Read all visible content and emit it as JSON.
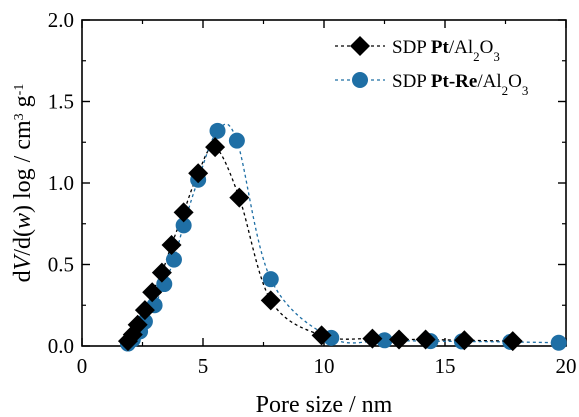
{
  "chart_data": {
    "type": "scatter",
    "xlabel": "Pore size / nm",
    "ylabel": "dV/d(w) log / cm3 g-1",
    "xlim": [
      0,
      20
    ],
    "ylim": [
      0,
      2.0
    ],
    "x_ticks": [
      0,
      5,
      10,
      15,
      20
    ],
    "y_ticks": [
      0.0,
      0.5,
      1.0,
      1.5,
      2.0
    ],
    "x_tick_labels": [
      "0",
      "5",
      "10",
      "15",
      "20"
    ],
    "y_tick_labels": [
      "0.0",
      "0.5",
      "1.0",
      "1.5",
      "2.0"
    ],
    "grid": false,
    "legend_position": "top-right",
    "series": [
      {
        "name": "SDP Pt/Al2O3",
        "marker": "diamond",
        "color": "#000000",
        "line_style": "dotted",
        "points": [
          [
            1.9,
            0.03
          ],
          [
            2.1,
            0.07
          ],
          [
            2.3,
            0.13
          ],
          [
            2.6,
            0.22
          ],
          [
            2.9,
            0.33
          ],
          [
            3.3,
            0.45
          ],
          [
            3.7,
            0.62
          ],
          [
            4.2,
            0.82
          ],
          [
            4.8,
            1.06
          ],
          [
            5.5,
            1.22
          ],
          [
            6.5,
            0.91
          ],
          [
            7.8,
            0.28
          ],
          [
            9.9,
            0.065
          ],
          [
            12.0,
            0.045
          ],
          [
            13.1,
            0.04
          ],
          [
            14.2,
            0.04
          ],
          [
            15.8,
            0.035
          ],
          [
            17.8,
            0.03
          ]
        ]
      },
      {
        "name": "SDP Pt-Re/Al2O3",
        "marker": "circle",
        "color": "#1f6fa5",
        "line_style": "dotted",
        "points": [
          [
            1.9,
            0.015
          ],
          [
            2.1,
            0.04
          ],
          [
            2.4,
            0.09
          ],
          [
            2.6,
            0.15
          ],
          [
            3.0,
            0.25
          ],
          [
            3.4,
            0.38
          ],
          [
            3.8,
            0.53
          ],
          [
            4.2,
            0.74
          ],
          [
            4.8,
            1.02
          ],
          [
            5.6,
            1.32
          ],
          [
            6.4,
            1.26
          ],
          [
            7.8,
            0.41
          ],
          [
            10.3,
            0.05
          ],
          [
            12.5,
            0.035
          ],
          [
            14.4,
            0.03
          ],
          [
            15.7,
            0.028
          ],
          [
            17.7,
            0.025
          ],
          [
            19.7,
            0.02
          ]
        ]
      }
    ],
    "legend": [
      {
        "prefix": "SDP ",
        "bold": "Pt",
        "rest": "/Al",
        "sub": "2",
        "rest2": "O",
        "sub2": "3"
      },
      {
        "prefix": "SDP ",
        "bold": "Pt-Re",
        "rest": "/Al",
        "sub": "2",
        "rest2": "O",
        "sub2": "3"
      }
    ],
    "ylabel_parts": {
      "d1": "d",
      "V": "V",
      "mid": "/d(",
      "w": "w",
      "tail": ") log / cm",
      "sup1": "3",
      "g": " g",
      "sup2": "-1"
    }
  }
}
